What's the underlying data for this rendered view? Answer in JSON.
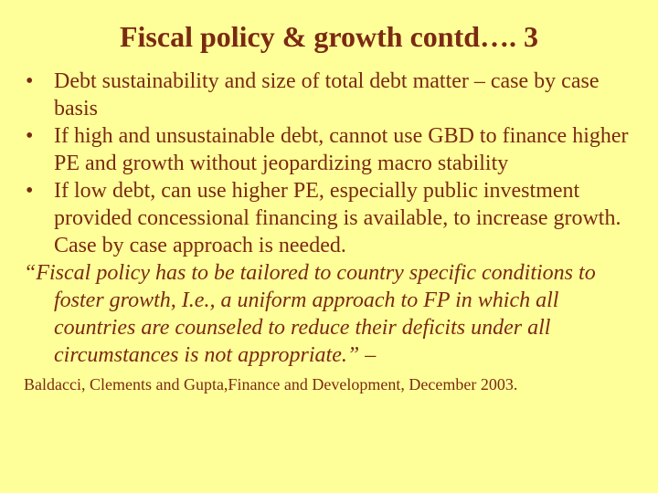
{
  "slide": {
    "title": "Fiscal policy & growth contd…. 3",
    "bullet_glyph": "•",
    "bullets": [
      "Debt sustainability and size of total debt matter – case by case basis",
      "If high and unsustainable debt, cannot use GBD to finance higher PE and growth without jeopardizing macro stability",
      "If low debt, can use higher PE, especially public investment provided concessional financing is available, to increase growth. Case by case approach is needed."
    ],
    "quote": "“Fiscal policy has to be tailored to country specific conditions to foster growth, I.e., a uniform approach to FP in which all countries are counseled to reduce their deficits under all circumstances  is not appropriate.” –",
    "citation": "Baldacci, Clements and Gupta,Finance and Development, December 2003.",
    "colors": {
      "background": "#ffff99",
      "text": "#7a2a12"
    }
  }
}
